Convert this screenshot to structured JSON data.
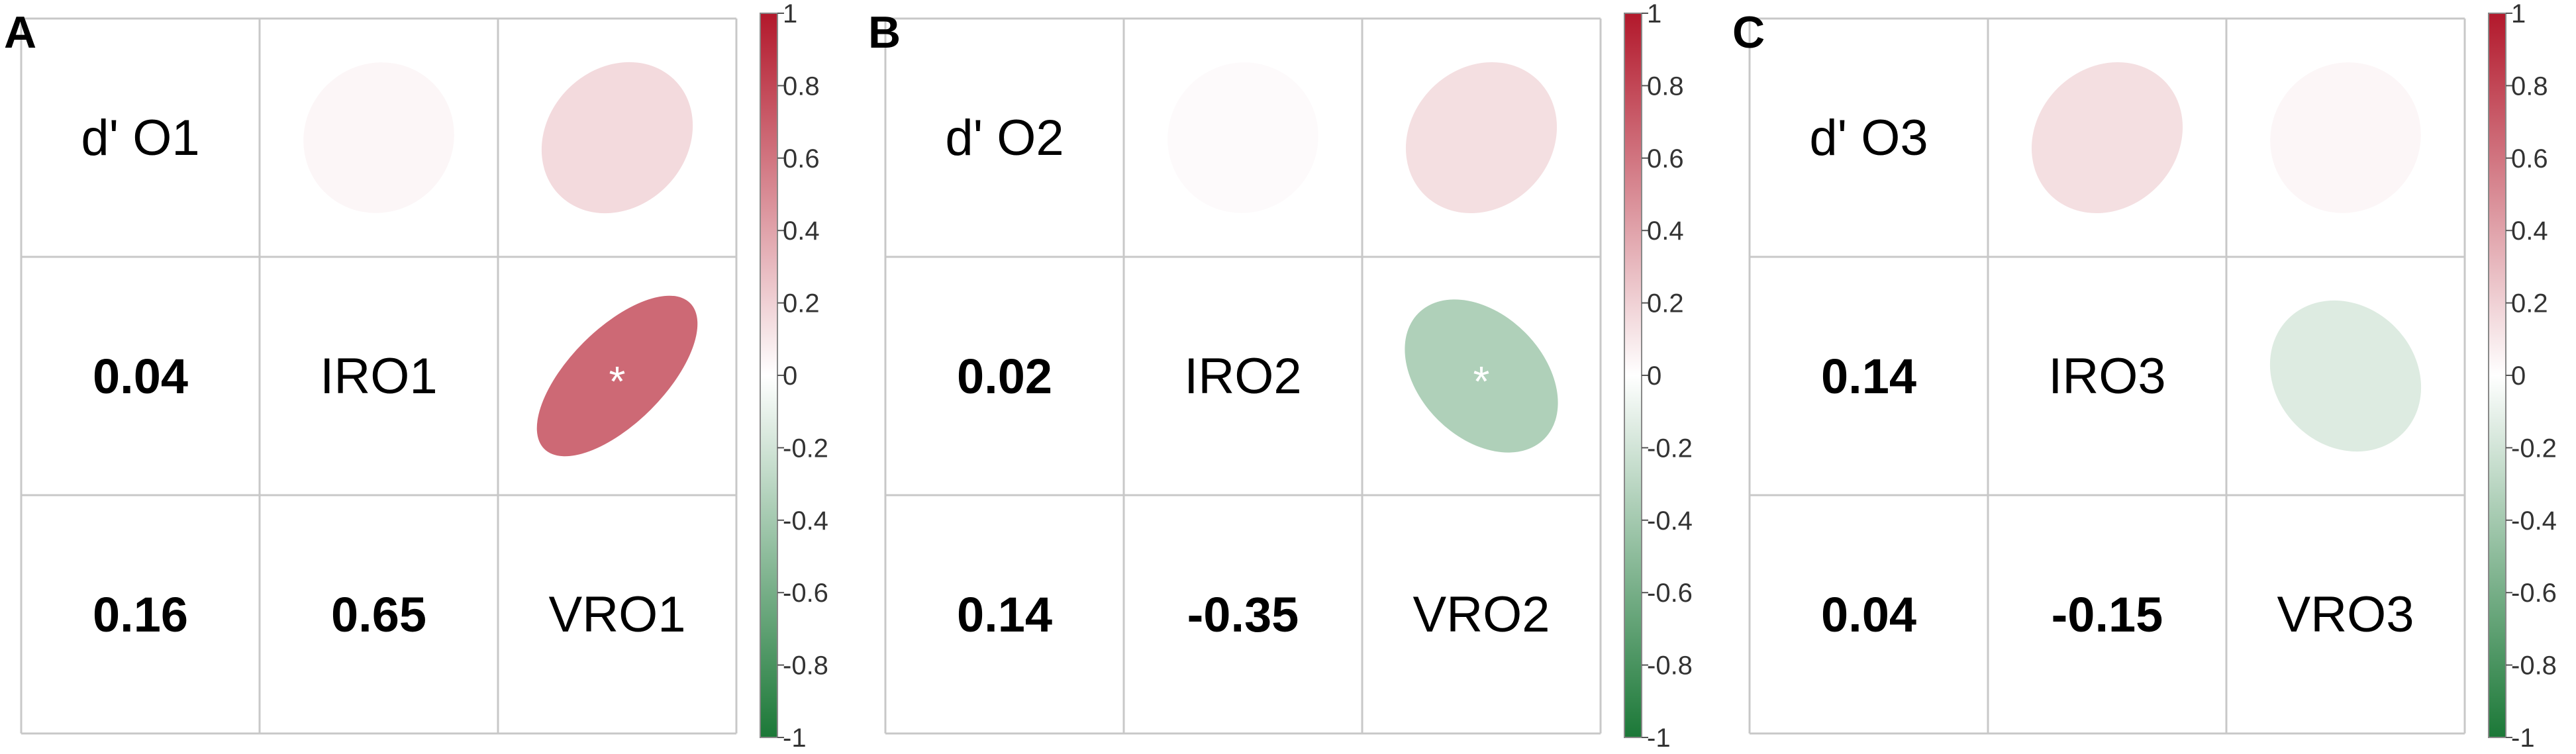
{
  "colors": {
    "positive": "#b2182b",
    "neutral": "#ffffff",
    "negative": "#1b7837",
    "grid": "#c8c8c8",
    "text": "#000000",
    "significance_marker": "#ffffff"
  },
  "chart_data": [
    {
      "type": "heatmap",
      "panel_label": "A",
      "variables": [
        "d' O1",
        "IRO1",
        "VRO1"
      ],
      "lower_values": [
        {
          "row": 1,
          "col": 0,
          "label": "0.04",
          "value": 0.04
        },
        {
          "row": 2,
          "col": 0,
          "label": "0.16",
          "value": 0.16
        },
        {
          "row": 2,
          "col": 1,
          "label": "0.65",
          "value": 0.65
        }
      ],
      "upper_ellipses": [
        {
          "row": 0,
          "col": 1,
          "value": 0.04,
          "significant": false
        },
        {
          "row": 0,
          "col": 2,
          "value": 0.16,
          "significant": false
        },
        {
          "row": 1,
          "col": 2,
          "value": 0.65,
          "significant": true
        }
      ],
      "significance_symbol": "*",
      "colorbar": {
        "min": -1,
        "max": 1,
        "ticks": [
          "1",
          "0.8",
          "0.6",
          "0.4",
          "0.2",
          "0",
          "-0.2",
          "-0.4",
          "-0.6",
          "-0.8",
          "-1"
        ]
      }
    },
    {
      "type": "heatmap",
      "panel_label": "B",
      "variables": [
        "d' O2",
        "IRO2",
        "VRO2"
      ],
      "lower_values": [
        {
          "row": 1,
          "col": 0,
          "label": "0.02",
          "value": 0.02
        },
        {
          "row": 2,
          "col": 0,
          "label": "0.14",
          "value": 0.14
        },
        {
          "row": 2,
          "col": 1,
          "label": "-0.35",
          "value": -0.35
        }
      ],
      "upper_ellipses": [
        {
          "row": 0,
          "col": 1,
          "value": 0.02,
          "significant": false
        },
        {
          "row": 0,
          "col": 2,
          "value": 0.14,
          "significant": false
        },
        {
          "row": 1,
          "col": 2,
          "value": -0.35,
          "significant": true
        }
      ],
      "significance_symbol": "*",
      "colorbar": {
        "min": -1,
        "max": 1,
        "ticks": [
          "1",
          "0.8",
          "0.6",
          "0.4",
          "0.2",
          "0",
          "-0.2",
          "-0.4",
          "-0.6",
          "-0.8",
          "-1"
        ]
      }
    },
    {
      "type": "heatmap",
      "panel_label": "C",
      "variables": [
        "d' O3",
        "IRO3",
        "VRO3"
      ],
      "lower_values": [
        {
          "row": 1,
          "col": 0,
          "label": "0.14",
          "value": 0.14
        },
        {
          "row": 2,
          "col": 0,
          "label": "0.04",
          "value": 0.04
        },
        {
          "row": 2,
          "col": 1,
          "label": "-0.15",
          "value": -0.15
        }
      ],
      "upper_ellipses": [
        {
          "row": 0,
          "col": 1,
          "value": 0.14,
          "significant": false
        },
        {
          "row": 0,
          "col": 2,
          "value": 0.04,
          "significant": false
        },
        {
          "row": 1,
          "col": 2,
          "value": -0.15,
          "significant": false
        }
      ],
      "significance_symbol": "*",
      "colorbar": {
        "min": -1,
        "max": 1,
        "ticks": [
          "1",
          "0.8",
          "0.6",
          "0.4",
          "0.2",
          "0",
          "-0.2",
          "-0.4",
          "-0.6",
          "-0.8",
          "-1"
        ]
      }
    }
  ]
}
